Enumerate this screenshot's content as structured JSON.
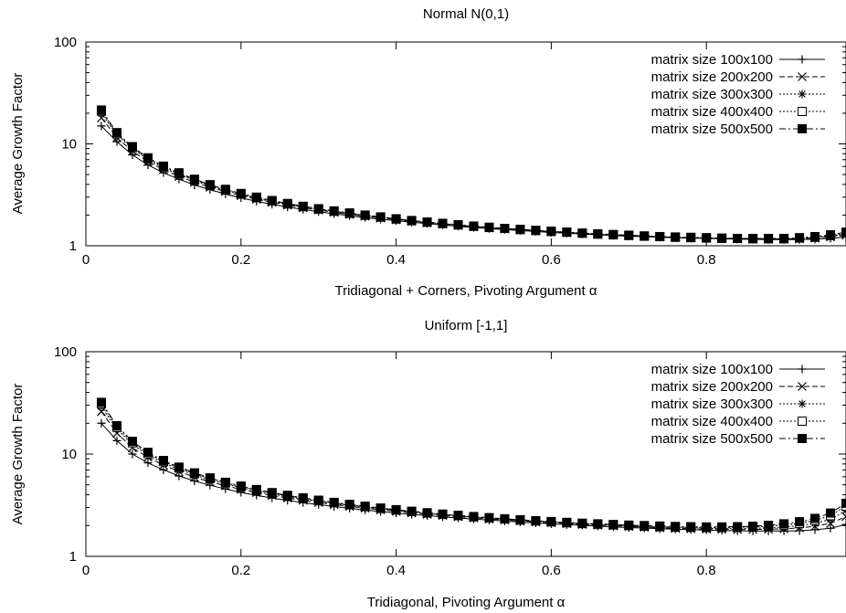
{
  "chart_data": [
    {
      "type": "line",
      "title": "Normal N(0,1)",
      "xlabel": "Tridiagonal + Corners, Pivoting Argument α",
      "ylabel": "Average Growth Factor",
      "xlim": [
        0,
        0.98
      ],
      "ylim": [
        1,
        100
      ],
      "yscale": "log",
      "xticks": [
        "0",
        "0.2",
        "0.4",
        "0.6",
        "0.8"
      ],
      "yticks": [
        "1",
        "10",
        "100"
      ],
      "grid": false,
      "legend_position": "top-right",
      "x": [
        0.02,
        0.04,
        0.06,
        0.08,
        0.1,
        0.12,
        0.14,
        0.16,
        0.18,
        0.2,
        0.22,
        0.24,
        0.26,
        0.28,
        0.3,
        0.32,
        0.34,
        0.36,
        0.38,
        0.4,
        0.42,
        0.44,
        0.46,
        0.48,
        0.5,
        0.52,
        0.54,
        0.56,
        0.58,
        0.6,
        0.62,
        0.64,
        0.66,
        0.68,
        0.7,
        0.72,
        0.74,
        0.76,
        0.78,
        0.8,
        0.82,
        0.84,
        0.86,
        0.88,
        0.9,
        0.92,
        0.94,
        0.96,
        0.98
      ],
      "series": [
        {
          "name": "matrix size 100x100",
          "marker": "plus",
          "dash": "solid",
          "values": [
            15.0,
            10.5,
            7.8,
            6.2,
            5.2,
            4.5,
            3.95,
            3.55,
            3.22,
            2.95,
            2.73,
            2.55,
            2.4,
            2.27,
            2.16,
            2.06,
            1.97,
            1.89,
            1.82,
            1.76,
            1.7,
            1.65,
            1.6,
            1.55,
            1.51,
            1.47,
            1.44,
            1.41,
            1.38,
            1.35,
            1.33,
            1.3,
            1.28,
            1.26,
            1.24,
            1.23,
            1.21,
            1.2,
            1.19,
            1.18,
            1.17,
            1.16,
            1.155,
            1.15,
            1.15,
            1.15,
            1.16,
            1.18,
            1.22
          ]
        },
        {
          "name": "matrix size 200x200",
          "marker": "cross",
          "dash": "dashed",
          "values": [
            18.0,
            11.5,
            8.5,
            6.7,
            5.6,
            4.8,
            4.2,
            3.75,
            3.4,
            3.1,
            2.86,
            2.66,
            2.5,
            2.36,
            2.24,
            2.13,
            2.03,
            1.95,
            1.87,
            1.8,
            1.74,
            1.68,
            1.63,
            1.58,
            1.54,
            1.5,
            1.46,
            1.43,
            1.4,
            1.37,
            1.34,
            1.32,
            1.29,
            1.27,
            1.25,
            1.24,
            1.22,
            1.21,
            1.2,
            1.19,
            1.18,
            1.17,
            1.16,
            1.16,
            1.16,
            1.17,
            1.19,
            1.22,
            1.27
          ]
        },
        {
          "name": "matrix size 300x300",
          "marker": "star",
          "dash": "dotted",
          "values": [
            20.0,
            12.2,
            9.0,
            7.0,
            5.8,
            5.0,
            4.35,
            3.85,
            3.48,
            3.17,
            2.92,
            2.71,
            2.54,
            2.4,
            2.27,
            2.16,
            2.06,
            1.97,
            1.89,
            1.82,
            1.75,
            1.69,
            1.64,
            1.59,
            1.55,
            1.51,
            1.47,
            1.44,
            1.41,
            1.38,
            1.35,
            1.32,
            1.3,
            1.28,
            1.26,
            1.24,
            1.22,
            1.21,
            1.2,
            1.19,
            1.18,
            1.17,
            1.17,
            1.16,
            1.17,
            1.18,
            1.2,
            1.24,
            1.3
          ]
        },
        {
          "name": "matrix size 400x400",
          "marker": "box",
          "dash": "dotted",
          "values": [
            21.0,
            12.6,
            9.2,
            7.2,
            5.95,
            5.1,
            4.45,
            3.93,
            3.54,
            3.22,
            2.96,
            2.75,
            2.57,
            2.42,
            2.29,
            2.18,
            2.08,
            1.99,
            1.91,
            1.83,
            1.76,
            1.7,
            1.65,
            1.6,
            1.55,
            1.51,
            1.48,
            1.44,
            1.41,
            1.38,
            1.36,
            1.33,
            1.3,
            1.28,
            1.26,
            1.24,
            1.23,
            1.21,
            1.2,
            1.19,
            1.18,
            1.18,
            1.17,
            1.17,
            1.17,
            1.19,
            1.21,
            1.26,
            1.33
          ]
        },
        {
          "name": "matrix size 500x500",
          "marker": "filled-box",
          "dash": "dashdot",
          "values": [
            21.5,
            12.9,
            9.4,
            7.3,
            6.05,
            5.2,
            4.5,
            3.98,
            3.58,
            3.26,
            3.0,
            2.78,
            2.6,
            2.44,
            2.31,
            2.2,
            2.1,
            2.0,
            1.92,
            1.84,
            1.77,
            1.71,
            1.66,
            1.61,
            1.56,
            1.52,
            1.48,
            1.45,
            1.42,
            1.39,
            1.36,
            1.33,
            1.31,
            1.29,
            1.27,
            1.25,
            1.23,
            1.22,
            1.21,
            1.2,
            1.19,
            1.18,
            1.18,
            1.18,
            1.18,
            1.2,
            1.23,
            1.28,
            1.36
          ]
        }
      ]
    },
    {
      "type": "line",
      "title": "Uniform [-1,1]",
      "xlabel": "Tridiagonal, Pivoting Argument α",
      "ylabel": "Average Growth Factor",
      "xlim": [
        0,
        0.98
      ],
      "ylim": [
        1,
        100
      ],
      "yscale": "log",
      "xticks": [
        "0",
        "0.2",
        "0.4",
        "0.6",
        "0.8"
      ],
      "yticks": [
        "1",
        "10",
        "100"
      ],
      "grid": false,
      "legend_position": "top-right",
      "x": [
        0.02,
        0.04,
        0.06,
        0.08,
        0.1,
        0.12,
        0.14,
        0.16,
        0.18,
        0.2,
        0.22,
        0.24,
        0.26,
        0.28,
        0.3,
        0.32,
        0.34,
        0.36,
        0.38,
        0.4,
        0.42,
        0.44,
        0.46,
        0.48,
        0.5,
        0.52,
        0.54,
        0.56,
        0.58,
        0.6,
        0.62,
        0.64,
        0.66,
        0.68,
        0.7,
        0.72,
        0.74,
        0.76,
        0.78,
        0.8,
        0.82,
        0.84,
        0.86,
        0.88,
        0.9,
        0.92,
        0.94,
        0.96,
        0.98
      ],
      "series": [
        {
          "name": "matrix size 100x100",
          "marker": "plus",
          "dash": "solid",
          "values": [
            20.0,
            13.5,
            10.0,
            8.2,
            7.0,
            6.1,
            5.45,
            4.95,
            4.55,
            4.22,
            3.95,
            3.72,
            3.52,
            3.35,
            3.2,
            3.07,
            2.95,
            2.84,
            2.74,
            2.65,
            2.57,
            2.5,
            2.43,
            2.37,
            2.31,
            2.26,
            2.21,
            2.16,
            2.12,
            2.08,
            2.04,
            2.01,
            1.97,
            1.94,
            1.91,
            1.89,
            1.86,
            1.84,
            1.82,
            1.81,
            1.79,
            1.78,
            1.77,
            1.77,
            1.77,
            1.78,
            1.82,
            1.88,
            2.05
          ]
        },
        {
          "name": "matrix size 200x200",
          "marker": "cross",
          "dash": "dashed",
          "values": [
            26.0,
            16.0,
            11.5,
            9.3,
            7.8,
            6.75,
            5.95,
            5.35,
            4.9,
            4.52,
            4.2,
            3.94,
            3.72,
            3.53,
            3.36,
            3.21,
            3.08,
            2.96,
            2.85,
            2.75,
            2.66,
            2.58,
            2.51,
            2.44,
            2.38,
            2.32,
            2.27,
            2.22,
            2.17,
            2.13,
            2.09,
            2.05,
            2.02,
            1.99,
            1.96,
            1.93,
            1.9,
            1.88,
            1.86,
            1.85,
            1.84,
            1.83,
            1.83,
            1.84,
            1.86,
            1.9,
            1.97,
            2.1,
            2.45
          ]
        },
        {
          "name": "matrix size 300x300",
          "marker": "star",
          "dash": "dotted",
          "values": [
            29.0,
            17.5,
            12.4,
            9.8,
            8.2,
            7.1,
            6.25,
            5.6,
            5.1,
            4.7,
            4.35,
            4.07,
            3.83,
            3.63,
            3.45,
            3.29,
            3.15,
            3.02,
            2.91,
            2.8,
            2.71,
            2.62,
            2.55,
            2.48,
            2.41,
            2.35,
            2.3,
            2.25,
            2.2,
            2.16,
            2.12,
            2.08,
            2.04,
            2.01,
            1.98,
            1.95,
            1.93,
            1.91,
            1.89,
            1.88,
            1.87,
            1.87,
            1.88,
            1.9,
            1.94,
            2.0,
            2.1,
            2.3,
            2.8
          ]
        },
        {
          "name": "matrix size 400x400",
          "marker": "box",
          "dash": "dotted",
          "values": [
            31.0,
            18.3,
            12.9,
            10.1,
            8.45,
            7.3,
            6.42,
            5.75,
            5.22,
            4.8,
            4.44,
            4.15,
            3.9,
            3.69,
            3.5,
            3.34,
            3.19,
            3.06,
            2.94,
            2.83,
            2.74,
            2.65,
            2.57,
            2.5,
            2.43,
            2.37,
            2.32,
            2.26,
            2.22,
            2.17,
            2.13,
            2.09,
            2.06,
            2.03,
            2.0,
            1.97,
            1.95,
            1.93,
            1.92,
            1.91,
            1.91,
            1.92,
            1.94,
            1.97,
            2.02,
            2.1,
            2.25,
            2.5,
            3.1
          ]
        },
        {
          "name": "matrix size 500x500",
          "marker": "filled-box",
          "dash": "dashdot",
          "values": [
            32.0,
            18.9,
            13.3,
            10.4,
            8.65,
            7.45,
            6.55,
            5.85,
            5.3,
            4.87,
            4.5,
            4.2,
            3.95,
            3.73,
            3.54,
            3.37,
            3.22,
            3.09,
            2.97,
            2.86,
            2.76,
            2.67,
            2.59,
            2.52,
            2.45,
            2.39,
            2.33,
            2.28,
            2.23,
            2.19,
            2.15,
            2.11,
            2.08,
            2.05,
            2.02,
            2.0,
            1.98,
            1.96,
            1.95,
            1.94,
            1.94,
            1.95,
            1.97,
            2.01,
            2.08,
            2.18,
            2.35,
            2.65,
            3.3
          ]
        }
      ]
    }
  ]
}
